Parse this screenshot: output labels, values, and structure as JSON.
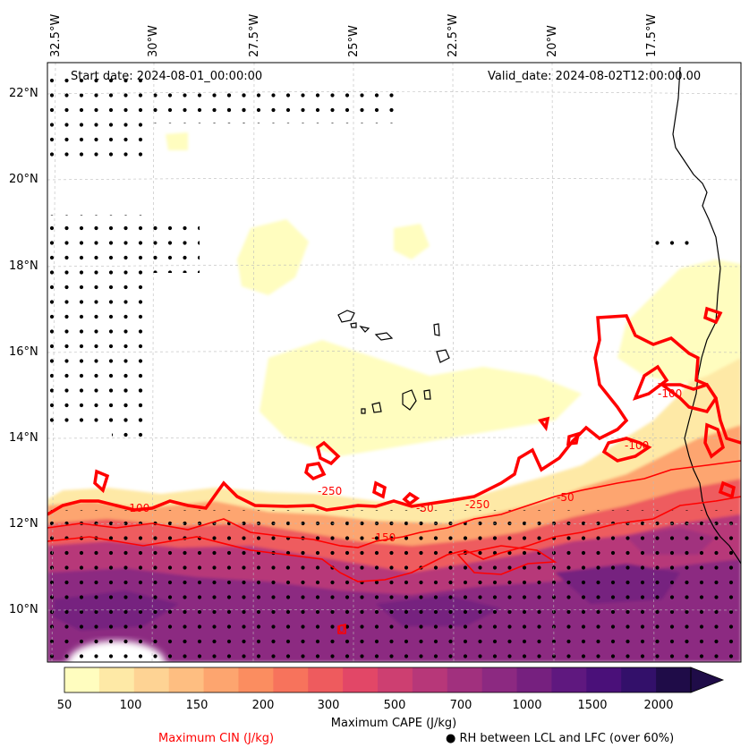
{
  "header": {
    "start_date": "Start date: 2024-08-01_00:00:00",
    "valid_date": "Valid_date: 2024-08-02T12:00:00.00"
  },
  "longitude_labels": [
    "32.5°W",
    "30°W",
    "27.5°W",
    "25°W",
    "22.5°W",
    "20°W",
    "17.5°W"
  ],
  "latitude_labels": [
    "22°N",
    "20°N",
    "18°N",
    "16°N",
    "14°N",
    "12°N",
    "10°N"
  ],
  "cin_contour_labels": [
    "-250",
    "-100",
    "-250",
    "-150",
    "-50",
    "-50",
    "-100",
    "-100",
    "0"
  ],
  "colorbar": {
    "label": "Maximum CAPE (J/kg)",
    "tick_labels": [
      "50",
      "100",
      "150",
      "200",
      "300",
      "500",
      "700",
      "1000",
      "1500",
      "2000"
    ],
    "colors": [
      "#fffdbf",
      "#fee9a6",
      "#fed394",
      "#febe81",
      "#fda56f",
      "#fb8d60",
      "#f7735c",
      "#ee5b5e",
      "#e24767",
      "#cd3f71",
      "#b73779",
      "#a1307e",
      "#8c2981",
      "#76207f",
      "#5f187f",
      "#4a1079",
      "#33106a",
      "#1f0c48"
    ],
    "extend": "max"
  },
  "legend": {
    "cin_label": "Maximum CIN (J/kg)",
    "cin_color": "#ff0000",
    "rh_marker": "●",
    "rh_label": "RH between LCL and LFC (over 60%)"
  }
}
